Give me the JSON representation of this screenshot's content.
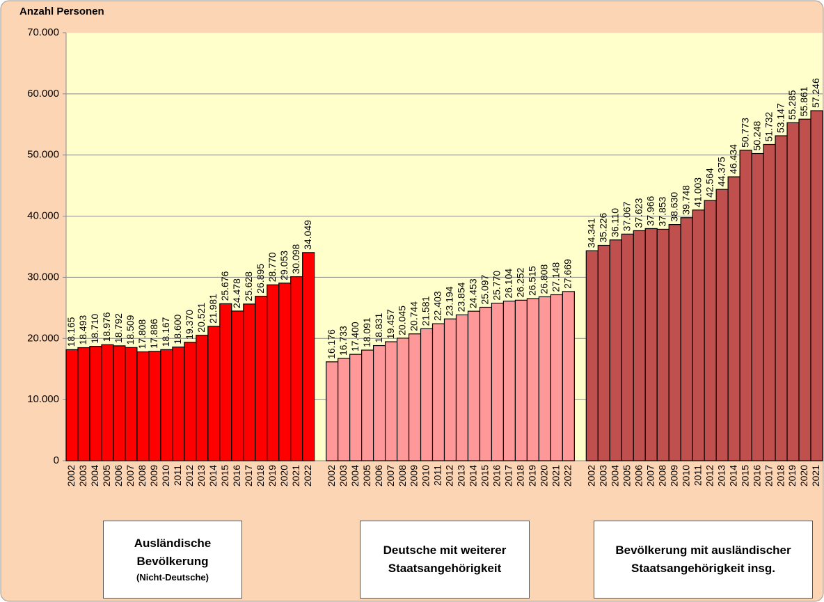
{
  "chart_data": {
    "type": "bar",
    "y_axis_label": "Anzahl Personen",
    "ylim": [
      0,
      70000
    ],
    "yticks": [
      0,
      {
        "value": 10000,
        "label": "10.000"
      },
      {
        "value": 20000,
        "label": "20.000"
      },
      {
        "value": 30000,
        "label": "30.000"
      },
      {
        "value": 40000,
        "label": "40.000"
      },
      {
        "value": 50000,
        "label": "50.000"
      },
      {
        "value": 60000,
        "label": "60.000"
      },
      {
        "value": 70000,
        "label": "70.000"
      }
    ],
    "grid": true,
    "series": [
      {
        "name": "Ausländische Bevölkerung",
        "subtitle": "(Nicht-Deutsche)",
        "color": "#ff0000",
        "categories": [
          "2002",
          "2003",
          "2004",
          "2005",
          "2006",
          "2007",
          "2008",
          "2009",
          "2010",
          "2011",
          "2012",
          "2013",
          "2014",
          "2015",
          "2016",
          "2017",
          "2018",
          "2019",
          "2020",
          "2021",
          "2022"
        ],
        "values": [
          18165,
          18493,
          18710,
          18976,
          18792,
          18509,
          17808,
          17886,
          18167,
          18600,
          19370,
          20521,
          21981,
          25676,
          24478,
          25628,
          26895,
          28770,
          29053,
          30098,
          34049
        ],
        "value_labels": [
          "18.165",
          "18.493",
          "18.710",
          "18.976",
          "18.792",
          "18.509",
          "17.808",
          "17.886",
          "18.167",
          "18.600",
          "19.370",
          "20.521",
          "21.981",
          "25.676",
          "24.478",
          "25.628",
          "26.895",
          "28.770",
          "29.053",
          "30.098",
          "34.049"
        ]
      },
      {
        "name": "Deutsche mit weiterer Staatsangehörigkeit",
        "color": "#ff9999",
        "categories": [
          "2002",
          "2003",
          "2004",
          "2005",
          "2006",
          "2007",
          "2008",
          "2009",
          "2010",
          "2011",
          "2012",
          "2013",
          "2014",
          "2015",
          "2016",
          "2017",
          "2018",
          "2019",
          "2020",
          "2021",
          "2022"
        ],
        "values": [
          16176,
          16733,
          17400,
          18091,
          18831,
          19457,
          20045,
          20744,
          21581,
          22403,
          23194,
          23854,
          24453,
          25097,
          25770,
          26104,
          26252,
          26515,
          26808,
          27148,
          27669
        ],
        "value_labels": [
          "16.176",
          "16.733",
          "17.400",
          "18.091",
          "18.831",
          "19.457",
          "20.045",
          "20.744",
          "21.581",
          "22.403",
          "23.194",
          "23.854",
          "24.453",
          "25.097",
          "25.770",
          "26.104",
          "26.252",
          "26.515",
          "26.808",
          "27.148",
          "27.669"
        ]
      },
      {
        "name": "Bevölkerung mit ausländischer Staatsangehörigkeit insg.",
        "color": "#c0504d",
        "categories": [
          "2002",
          "2003",
          "2004",
          "2005",
          "2006",
          "2007",
          "2008",
          "2009",
          "2010",
          "2011",
          "2012",
          "2013",
          "2014",
          "2015",
          "2016",
          "2017",
          "2018",
          "2019",
          "2020",
          "2021"
        ],
        "values": [
          34341,
          35226,
          36110,
          37067,
          37623,
          37966,
          37853,
          38630,
          39748,
          41003,
          42564,
          44375,
          46434,
          50773,
          50248,
          51732,
          53147,
          55285,
          55861,
          57246
        ],
        "value_labels": [
          "34.341",
          "35.226",
          "36.110",
          "37.067",
          "37.623",
          "37.966",
          "37.853",
          "38.630",
          "39.748",
          "41.003",
          "42.564",
          "44.375",
          "46.434",
          "50.773",
          "50.248",
          "51.732",
          "53.147",
          "55.285",
          "55.861",
          "57.246"
        ]
      }
    ]
  }
}
